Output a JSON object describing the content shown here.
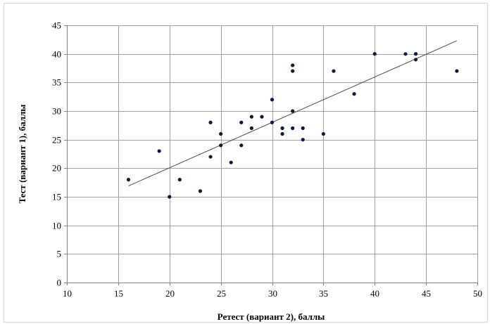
{
  "chart_data": {
    "type": "scatter",
    "title": "",
    "xlabel": "Ретест (вариант 2), баллы",
    "ylabel": "Тест (вариант 1), баллы",
    "xlim": [
      10,
      50
    ],
    "ylim": [
      0,
      45
    ],
    "xticks": [
      10,
      15,
      20,
      25,
      30,
      35,
      40,
      45,
      50
    ],
    "yticks": [
      0,
      5,
      10,
      15,
      20,
      25,
      30,
      35,
      40,
      45
    ],
    "grid": true,
    "legend": "none",
    "colors": {
      "points": "#0a1a3a",
      "trendline": "#4d4d4d",
      "grid": "#9f9f9f"
    },
    "points": [
      {
        "x": 16,
        "y": 18
      },
      {
        "x": 19,
        "y": 23
      },
      {
        "x": 20,
        "y": 15
      },
      {
        "x": 21,
        "y": 18
      },
      {
        "x": 23,
        "y": 16
      },
      {
        "x": 24,
        "y": 28
      },
      {
        "x": 24,
        "y": 22
      },
      {
        "x": 25,
        "y": 26
      },
      {
        "x": 25,
        "y": 24
      },
      {
        "x": 26,
        "y": 21
      },
      {
        "x": 27,
        "y": 28
      },
      {
        "x": 27,
        "y": 24
      },
      {
        "x": 28,
        "y": 29
      },
      {
        "x": 28,
        "y": 27
      },
      {
        "x": 29,
        "y": 29
      },
      {
        "x": 30,
        "y": 32
      },
      {
        "x": 30,
        "y": 28
      },
      {
        "x": 31,
        "y": 27
      },
      {
        "x": 31,
        "y": 26
      },
      {
        "x": 32,
        "y": 38
      },
      {
        "x": 32,
        "y": 37
      },
      {
        "x": 32,
        "y": 30
      },
      {
        "x": 32,
        "y": 27
      },
      {
        "x": 33,
        "y": 27
      },
      {
        "x": 33,
        "y": 25
      },
      {
        "x": 35,
        "y": 26
      },
      {
        "x": 36,
        "y": 37
      },
      {
        "x": 38,
        "y": 33
      },
      {
        "x": 40,
        "y": 40
      },
      {
        "x": 43,
        "y": 40
      },
      {
        "x": 44,
        "y": 40
      },
      {
        "x": 44,
        "y": 39
      },
      {
        "x": 48,
        "y": 37
      }
    ],
    "trendline": {
      "type": "linear",
      "x": [
        16,
        48
      ],
      "y": [
        16.9,
        42.3
      ]
    }
  }
}
